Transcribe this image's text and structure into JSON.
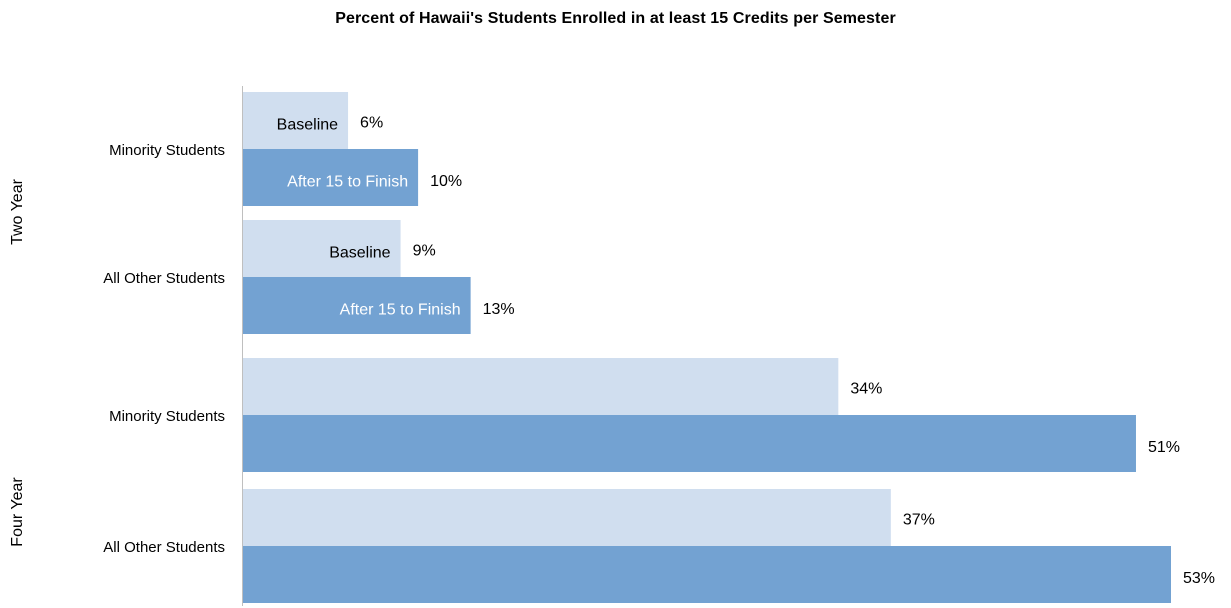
{
  "chart_data": {
    "type": "bar",
    "orientation": "horizontal",
    "title": "Percent of Hawaii's Students Enrolled in at least 15 Credits per Semester",
    "groups": [
      {
        "name": "Two Year",
        "categories": [
          {
            "name": "Minority Students",
            "bars": [
              {
                "label": "Baseline",
                "value": 6,
                "value_label": "6%",
                "series": "baseline"
              },
              {
                "label": "After 15 to Finish",
                "value": 10,
                "value_label": "10%",
                "series": "after"
              }
            ]
          },
          {
            "name": "All Other Students",
            "bars": [
              {
                "label": "Baseline",
                "value": 9,
                "value_label": "9%",
                "series": "baseline"
              },
              {
                "label": "After 15 to Finish",
                "value": 13,
                "value_label": "13%",
                "series": "after"
              }
            ]
          }
        ]
      },
      {
        "name": "Four Year",
        "categories": [
          {
            "name": "Minority Students",
            "bars": [
              {
                "label": "",
                "value": 34,
                "value_label": "34%",
                "series": "baseline"
              },
              {
                "label": "",
                "value": 51,
                "value_label": "51%",
                "series": "after"
              }
            ]
          },
          {
            "name": "All Other Students",
            "bars": [
              {
                "label": "",
                "value": 37,
                "value_label": "37%",
                "series": "baseline"
              },
              {
                "label": "",
                "value": 53,
                "value_label": "53%",
                "series": "after"
              }
            ]
          }
        ]
      }
    ],
    "colors": {
      "baseline": "#d0deef",
      "after": "#73a2d2"
    },
    "xlim": [
      0,
      53
    ],
    "grid": false,
    "legend": "none"
  }
}
